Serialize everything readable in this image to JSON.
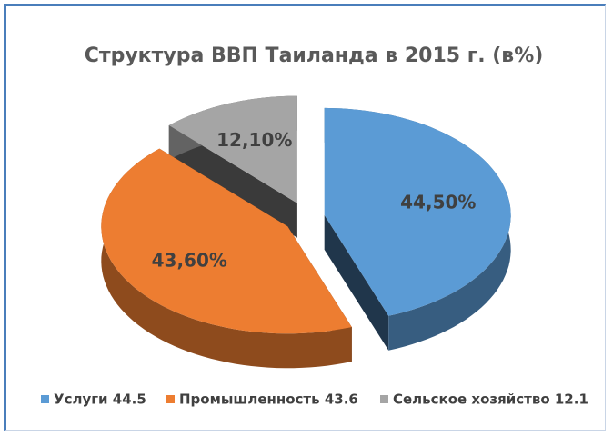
{
  "chart_data": {
    "type": "pie",
    "title": "Структура ВВП Таиланда в 2015 г. (в%)",
    "categories": [
      "Услуги 44.5",
      "Промышленность 43.6",
      "Сельское хозяйство 12.1"
    ],
    "values": [
      44.5,
      43.6,
      12.1
    ],
    "value_labels": [
      "44,50%",
      "43,60%",
      "12,10%"
    ],
    "colors": [
      "#5b9bd5",
      "#ed7d31",
      "#a5a5a5"
    ],
    "legend": "bottom"
  }
}
